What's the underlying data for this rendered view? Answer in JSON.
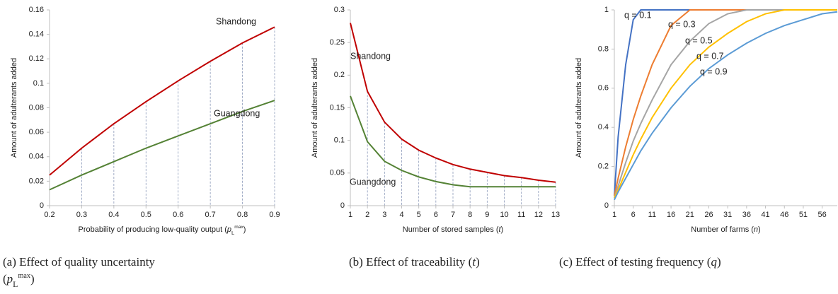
{
  "chart_data": [
    {
      "type": "line",
      "ylabel": "Amount of adulterants added",
      "xlabel": [
        {
          "text": "Probability of producing low-quality output ("
        },
        {
          "text": "p",
          "style": "italic"
        },
        {
          "text": "L",
          "style": "sub"
        },
        {
          "text": "max",
          "style": "sup"
        },
        {
          "text": ")"
        }
      ],
      "caption": [
        [
          {
            "text": "(a)  Effect  of  quality  uncertainty"
          }
        ],
        [
          {
            "text": "("
          },
          {
            "text": "p",
            "style": "italic"
          },
          {
            "text": "L",
            "style": "sub"
          },
          {
            "text": "max",
            "style": "sup"
          },
          {
            "text": ")"
          }
        ]
      ],
      "x": [
        0.2,
        0.3,
        0.4,
        0.5,
        0.6,
        0.7,
        0.8,
        0.9
      ],
      "series": [
        {
          "name": "Shandong",
          "color": "#c00000",
          "values": [
            0.025,
            0.047,
            0.067,
            0.085,
            0.102,
            0.118,
            0.133,
            0.146
          ]
        },
        {
          "name": "Guangdong",
          "color": "#548235",
          "values": [
            0.013,
            0.025,
            0.036,
            0.047,
            0.057,
            0.067,
            0.077,
            0.086
          ]
        }
      ],
      "xlim": [
        0.2,
        0.9
      ],
      "xticks": [
        0.2,
        0.3,
        0.4,
        0.5,
        0.6,
        0.7,
        0.8,
        0.9
      ],
      "ylim": [
        0,
        0.16
      ],
      "yticks": [
        0,
        0.02,
        0.04,
        0.06,
        0.08,
        0.1,
        0.12,
        0.14,
        0.16
      ],
      "droplines": true
    },
    {
      "type": "line",
      "ylabel": "Amount of adulterants added",
      "xlabel": [
        {
          "text": "Number of stored samples ("
        },
        {
          "text": "t",
          "style": "italic"
        },
        {
          "text": ")"
        }
      ],
      "caption": [
        [
          {
            "text": "(b) Effect of traceability ("
          },
          {
            "text": "t",
            "style": "italic"
          },
          {
            "text": ")"
          }
        ]
      ],
      "x": [
        1,
        2,
        3,
        4,
        5,
        6,
        7,
        8,
        9,
        10,
        11,
        12,
        13
      ],
      "series": [
        {
          "name": "Shandong",
          "color": "#c00000",
          "values": [
            0.28,
            0.175,
            0.128,
            0.102,
            0.085,
            0.073,
            0.063,
            0.056,
            0.051,
            0.046,
            0.043,
            0.039,
            0.036
          ]
        },
        {
          "name": "Guangdong",
          "color": "#548235",
          "values": [
            0.168,
            0.098,
            0.068,
            0.054,
            0.044,
            0.037,
            0.032,
            0.029,
            0.029,
            0.029,
            0.029,
            0.029,
            0.029
          ]
        }
      ],
      "xlim": [
        1,
        13
      ],
      "xticks": [
        1,
        2,
        3,
        4,
        5,
        6,
        7,
        8,
        9,
        10,
        11,
        12,
        13
      ],
      "ylim": [
        0,
        0.3
      ],
      "yticks": [
        0,
        0.05,
        0.1,
        0.15,
        0.2,
        0.25,
        0.3
      ],
      "droplines": true
    },
    {
      "type": "line",
      "ylabel": "Amount of adulterants added",
      "xlabel": [
        {
          "text": "Number of farms ("
        },
        {
          "text": "n",
          "style": "italic"
        },
        {
          "text": ")"
        }
      ],
      "caption": [
        [
          {
            "text": "(c) Effect of testing frequency ("
          },
          {
            "text": "q",
            "style": "italic"
          },
          {
            "text": ")"
          }
        ]
      ],
      "x": [
        1,
        2,
        4,
        6,
        8,
        11,
        16,
        21,
        26,
        31,
        36,
        41,
        46,
        51,
        56,
        60
      ],
      "series": [
        {
          "name": "q = 0.1",
          "color": "#4472c4",
          "values": [
            0.05,
            0.35,
            0.72,
            0.95,
            1,
            1,
            1,
            1,
            1,
            1,
            1,
            1,
            1,
            1,
            1,
            1
          ]
        },
        {
          "name": "q = 0.3",
          "color": "#ed7d31",
          "values": [
            0.05,
            0.14,
            0.3,
            0.44,
            0.56,
            0.72,
            0.92,
            1,
            1,
            1,
            1,
            1,
            1,
            1,
            1,
            1
          ]
        },
        {
          "name": "q = 0.5",
          "color": "#a5a5a5",
          "values": [
            0.04,
            0.1,
            0.22,
            0.33,
            0.42,
            0.54,
            0.72,
            0.84,
            0.93,
            0.98,
            1,
            1,
            1,
            1,
            1,
            1
          ]
        },
        {
          "name": "q = 0.7",
          "color": "#ffc000",
          "values": [
            0.04,
            0.08,
            0.17,
            0.26,
            0.34,
            0.45,
            0.6,
            0.72,
            0.81,
            0.88,
            0.94,
            0.98,
            1,
            1,
            1,
            1
          ]
        },
        {
          "name": "q = 0.9",
          "color": "#5b9bd5",
          "values": [
            0.03,
            0.07,
            0.14,
            0.21,
            0.28,
            0.37,
            0.5,
            0.61,
            0.7,
            0.77,
            0.83,
            0.88,
            0.92,
            0.95,
            0.98,
            0.99
          ]
        }
      ],
      "xlim": [
        1,
        60
      ],
      "xticks": [
        1,
        6,
        11,
        16,
        21,
        26,
        31,
        36,
        41,
        46,
        51,
        56
      ],
      "ylim": [
        0,
        1
      ],
      "yticks": [
        0,
        0.2,
        0.4,
        0.6,
        0.8,
        1
      ],
      "droplines": false
    }
  ]
}
